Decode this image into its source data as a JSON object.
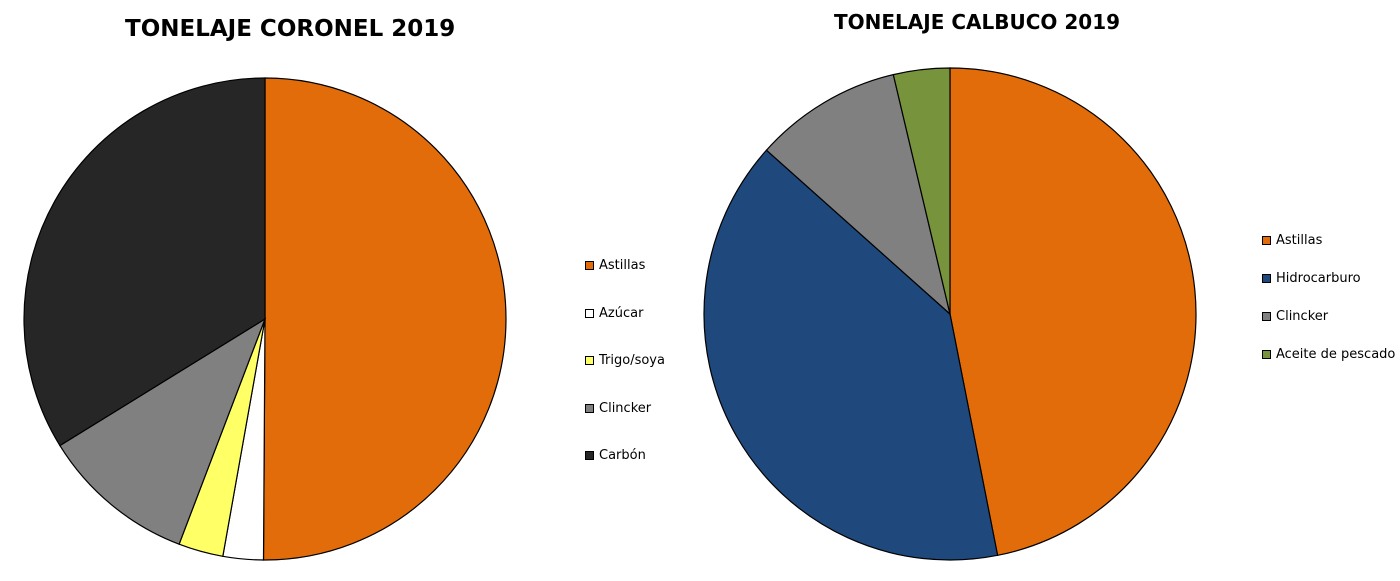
{
  "chart_data": [
    {
      "type": "pie",
      "title": "TONELAJE CORONEL 2019",
      "legend_position": "right",
      "start_angle": "12 o'clock, clockwise",
      "categories": [
        "Astillas",
        "Azúcar",
        "Trigo/soya",
        "Clincker",
        "Carbón"
      ],
      "values": [
        50.1,
        2.7,
        3.0,
        10.4,
        33.8
      ],
      "unit": "% (estimated share)",
      "colors": [
        "#E36C0A",
        "#FFFFFF",
        "#FFFF66",
        "#808080",
        "#262626"
      ]
    },
    {
      "type": "pie",
      "title": "TONELAJE CALBUCO 2019",
      "legend_position": "right",
      "start_angle": "12 o'clock, clockwise",
      "categories": [
        "Astillas",
        "Hidrocarburo",
        "Clincker",
        "Aceite de pescado"
      ],
      "values": [
        46.9,
        39.7,
        9.7,
        3.7
      ],
      "unit": "% (estimated share)",
      "colors": [
        "#E36C0A",
        "#1F497D",
        "#808080",
        "#77933C"
      ]
    }
  ]
}
